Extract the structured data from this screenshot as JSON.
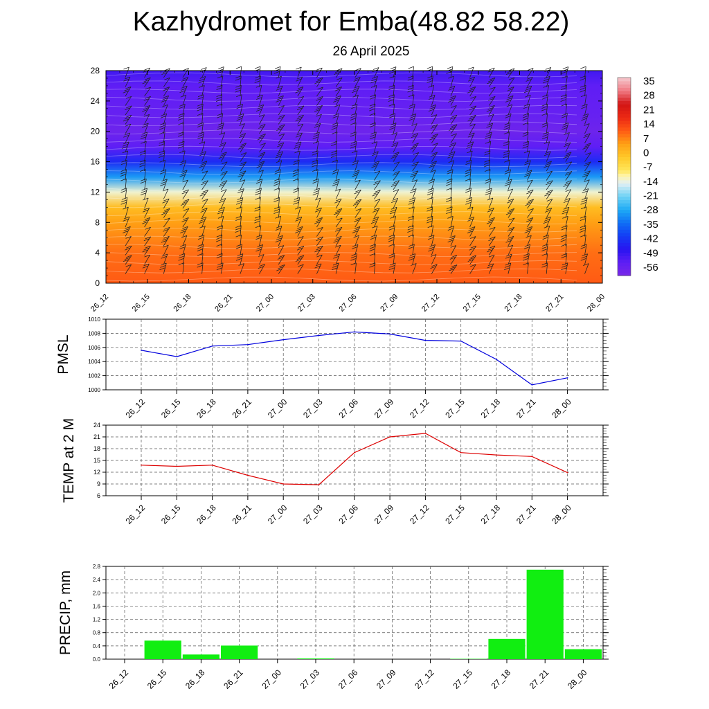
{
  "title": "Kazhydromet for Emba(48.82 58.22)",
  "subtitle": "26 April 2025",
  "colors": {
    "pmsl_line": "#0000dd",
    "temp_line": "#dd0000",
    "precip_bar": "#11ee11",
    "grid": "#555555"
  },
  "chart_data": [
    {
      "type": "heatmap",
      "name": "cross-section",
      "x_tick_labels": [
        "26_12",
        "26_15",
        "26_18",
        "26_21",
        "27_00",
        "27_03",
        "27_06",
        "27_09",
        "27_12",
        "27_15",
        "27_18",
        "27_21",
        "28_00"
      ],
      "y_ticks": [
        0,
        4,
        8,
        12,
        16,
        20,
        24,
        28
      ],
      "ylim": [
        0,
        28
      ],
      "colorbar_labels": [
        "35",
        "28",
        "21",
        "14",
        "7",
        "0",
        "-7",
        "-14",
        "-21",
        "-28",
        "-35",
        "-42",
        "-49",
        "-56"
      ],
      "colorbar_range": [
        -63,
        42
      ],
      "temperature_profile": [
        {
          "level": 0,
          "value": 14
        },
        {
          "level": 4,
          "value": 12
        },
        {
          "level": 8,
          "value": 7
        },
        {
          "level": 10,
          "value": 2
        },
        {
          "level": 12,
          "value": -12
        },
        {
          "level": 14,
          "value": -30
        },
        {
          "level": 16,
          "value": -45
        },
        {
          "level": 18,
          "value": -56
        },
        {
          "level": 20,
          "value": -60
        },
        {
          "level": 22,
          "value": -58
        },
        {
          "level": 24,
          "value": -57
        },
        {
          "level": 26,
          "value": -56
        },
        {
          "level": 28,
          "value": -52
        }
      ],
      "wind_barbs": "present"
    },
    {
      "type": "line",
      "ylabel": "PMSL",
      "x_tick_labels": [
        "26_12",
        "26_15",
        "26_18",
        "26_21",
        "27_00",
        "27_03",
        "27_06",
        "27_09",
        "27_12",
        "27_15",
        "27_18",
        "27_21",
        "28_00"
      ],
      "y_ticks": [
        1000,
        1002,
        1004,
        1006,
        1008,
        1010
      ],
      "ylim": [
        1000,
        1010
      ],
      "grid": true,
      "series": [
        {
          "values": [
            1005.6,
            1004.7,
            1006.2,
            1006.4,
            1007.1,
            1007.7,
            1008.2,
            1007.9,
            1007.0,
            1006.9,
            1004.3,
            1000.7,
            1001.7
          ]
        }
      ]
    },
    {
      "type": "line",
      "ylabel": "TEMP at 2 M",
      "x_tick_labels": [
        "26_12",
        "26_15",
        "26_18",
        "26_21",
        "27_00",
        "27_03",
        "27_06",
        "27_09",
        "27_12",
        "27_15",
        "27_18",
        "27_21",
        "28_00"
      ],
      "y_ticks": [
        6,
        9,
        12,
        15,
        18,
        21,
        24
      ],
      "ylim": [
        6,
        24
      ],
      "grid": true,
      "series": [
        {
          "values": [
            13.8,
            13.5,
            13.8,
            11.2,
            9.0,
            8.8,
            17.0,
            21.0,
            21.9,
            17.0,
            16.4,
            16.0,
            11.9
          ]
        }
      ]
    },
    {
      "type": "bar",
      "ylabel": "PRECIP, mm",
      "x_tick_labels": [
        "26_12",
        "26_15",
        "26_18",
        "26_21",
        "27_00",
        "27_03",
        "27_06",
        "27_09",
        "27_12",
        "27_15",
        "27_18",
        "27_21",
        "28_00"
      ],
      "y_ticks": [
        "0.0",
        "0.4",
        "0.8",
        "1.2",
        "1.6",
        "2.0",
        "2.4",
        "2.8"
      ],
      "ylim": [
        0,
        2.8
      ],
      "grid": true,
      "values": [
        0,
        0.56,
        0.14,
        0.41,
        0,
        0.02,
        0,
        0,
        0,
        0.01,
        0.61,
        2.7,
        0.3
      ]
    }
  ]
}
